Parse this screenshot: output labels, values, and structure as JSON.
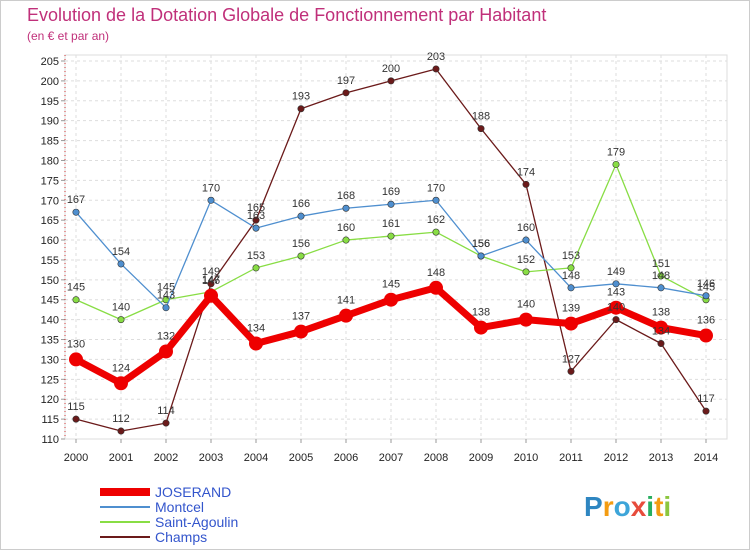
{
  "chart_data": {
    "type": "line",
    "title": "Evolution de la Dotation Globale de Fonctionnement par Habitant",
    "subtitle": "(en € et par an)",
    "x": [
      2000,
      2001,
      2002,
      2003,
      2004,
      2005,
      2006,
      2007,
      2008,
      2009,
      2010,
      2011,
      2012,
      2013,
      2014
    ],
    "ylim": [
      110,
      205
    ],
    "yticks": [
      110,
      115,
      120,
      125,
      130,
      135,
      140,
      145,
      150,
      155,
      160,
      165,
      170,
      175,
      180,
      185,
      190,
      195,
      200,
      205
    ],
    "grid": true,
    "legend_position": "bottom-left",
    "series": [
      {
        "name": "JOSERAND",
        "color": "#ee0000",
        "values": [
          130,
          124,
          132,
          146,
          134,
          137,
          141,
          145,
          148,
          138,
          140,
          139,
          143,
          138,
          136
        ]
      },
      {
        "name": "Montcel",
        "color": "#4f8fcf",
        "values": [
          167,
          154,
          143,
          170,
          163,
          166,
          168,
          169,
          170,
          156,
          160,
          148,
          149,
          148,
          146
        ]
      },
      {
        "name": "Saint-Agoulin",
        "color": "#88dd44",
        "values": [
          145,
          140,
          145,
          147,
          153,
          156,
          160,
          161,
          162,
          156,
          152,
          153,
          179,
          151,
          145
        ]
      },
      {
        "name": "Champs",
        "color": "#6b1a1a",
        "values": [
          115,
          112,
          114,
          149,
          165,
          193,
          197,
          200,
          203,
          188,
          174,
          127,
          140,
          134,
          117
        ]
      }
    ]
  },
  "brand": {
    "name": "Proxiti",
    "letters": [
      "P",
      "r",
      "o",
      "x",
      "i",
      "t",
      "i"
    ]
  }
}
